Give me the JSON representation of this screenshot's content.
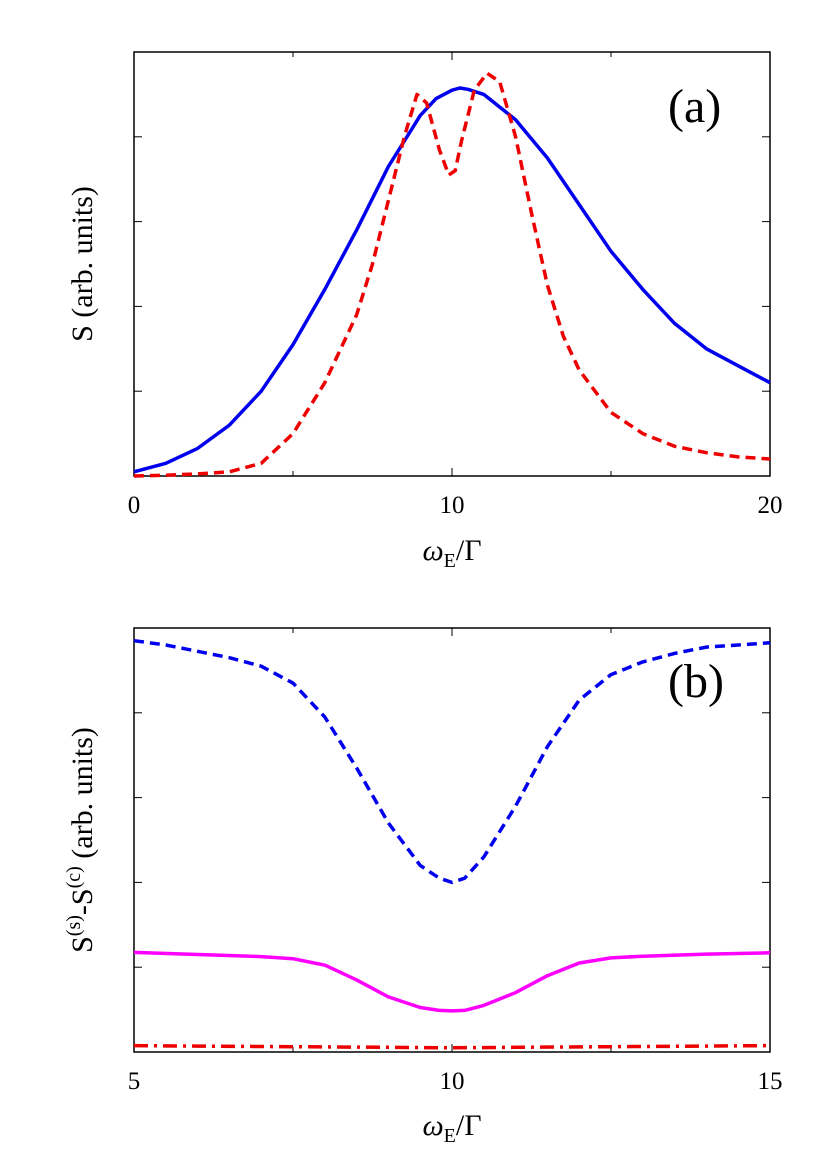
{
  "chart_data": [
    {
      "type": "line",
      "panel_label": "(a)",
      "title": "",
      "xlabel": "ω_E/Γ",
      "ylabel": "S (arb. units)",
      "xlim": [
        0,
        20
      ],
      "ylim": [
        0,
        1
      ],
      "x_ticks": [
        0,
        10,
        20
      ],
      "x_tick_labels": [
        "0",
        "10",
        "20"
      ],
      "y_tick_labels_shown": false,
      "grid": false,
      "legend": "none",
      "series": [
        {
          "style": "solid",
          "color": "#0000ee",
          "x": [
            0,
            1,
            2,
            3,
            4,
            5,
            6,
            7,
            8,
            9,
            9.5,
            10,
            10.25,
            10.5,
            11,
            12,
            13,
            14,
            15,
            16,
            17,
            18,
            19,
            20
          ],
          "y": [
            0.01,
            0.03,
            0.065,
            0.12,
            0.2,
            0.31,
            0.44,
            0.58,
            0.73,
            0.85,
            0.89,
            0.91,
            0.915,
            0.912,
            0.9,
            0.84,
            0.75,
            0.64,
            0.53,
            0.44,
            0.36,
            0.3,
            0.26,
            0.22
          ]
        },
        {
          "style": "dashed",
          "color": "#ee0000",
          "x": [
            0,
            1,
            2,
            3,
            4,
            5,
            6,
            7,
            7.5,
            8,
            8.5,
            8.9,
            9.2,
            9.6,
            9.9,
            10.1,
            10.3,
            10.7,
            11.1,
            11.5,
            12,
            12.5,
            13,
            13.5,
            14,
            15,
            16,
            17,
            18,
            19,
            20
          ],
          "y": [
            0,
            0.002,
            0.005,
            0.01,
            0.03,
            0.1,
            0.22,
            0.38,
            0.5,
            0.65,
            0.8,
            0.9,
            0.88,
            0.77,
            0.71,
            0.72,
            0.79,
            0.91,
            0.95,
            0.93,
            0.8,
            0.62,
            0.45,
            0.33,
            0.25,
            0.15,
            0.1,
            0.07,
            0.055,
            0.045,
            0.04
          ]
        }
      ]
    },
    {
      "type": "line",
      "panel_label": "(b)",
      "title": "",
      "xlabel": "ω_E/Γ",
      "ylabel": "S(s)-S(c) (arb. units)",
      "ylabel_parts": {
        "s1": "S",
        "sup1": "(s)",
        "mid": "-S",
        "sup2": "(c)",
        "tail": " (arb. units)"
      },
      "xlim": [
        5,
        15
      ],
      "ylim": [
        0,
        1
      ],
      "x_ticks": [
        5,
        10,
        15
      ],
      "x_tick_labels": [
        "5",
        "10",
        "15"
      ],
      "y_tick_labels_shown": false,
      "grid": false,
      "legend": "none",
      "series": [
        {
          "style": "dashed",
          "color": "#0000ee",
          "x": [
            5,
            5.5,
            6,
            6.5,
            7,
            7.5,
            8,
            8.5,
            9,
            9.5,
            9.8,
            10,
            10.2,
            10.5,
            11,
            11.5,
            12,
            12.5,
            13,
            13.5,
            14,
            14.5,
            15
          ],
          "y": [
            0.97,
            0.96,
            0.945,
            0.93,
            0.91,
            0.87,
            0.79,
            0.67,
            0.54,
            0.44,
            0.41,
            0.4,
            0.41,
            0.46,
            0.58,
            0.72,
            0.83,
            0.89,
            0.92,
            0.94,
            0.955,
            0.96,
            0.965
          ]
        },
        {
          "style": "solid",
          "color": "#ff00ff",
          "x": [
            5,
            6,
            7,
            7.5,
            8,
            8.5,
            9,
            9.5,
            9.8,
            10,
            10.2,
            10.5,
            11,
            11.5,
            12,
            12.5,
            13,
            14,
            15
          ],
          "y": [
            0.235,
            0.23,
            0.225,
            0.22,
            0.205,
            0.17,
            0.13,
            0.105,
            0.098,
            0.097,
            0.098,
            0.11,
            0.14,
            0.18,
            0.21,
            0.222,
            0.226,
            0.231,
            0.234
          ]
        },
        {
          "style": "dash-dot",
          "color": "#ee0000",
          "x": [
            5,
            6,
            7,
            8,
            9,
            10,
            11,
            12,
            13,
            14,
            15
          ],
          "y": [
            0.015,
            0.014,
            0.013,
            0.012,
            0.011,
            0.01,
            0.011,
            0.012,
            0.013,
            0.014,
            0.015
          ]
        }
      ]
    }
  ]
}
